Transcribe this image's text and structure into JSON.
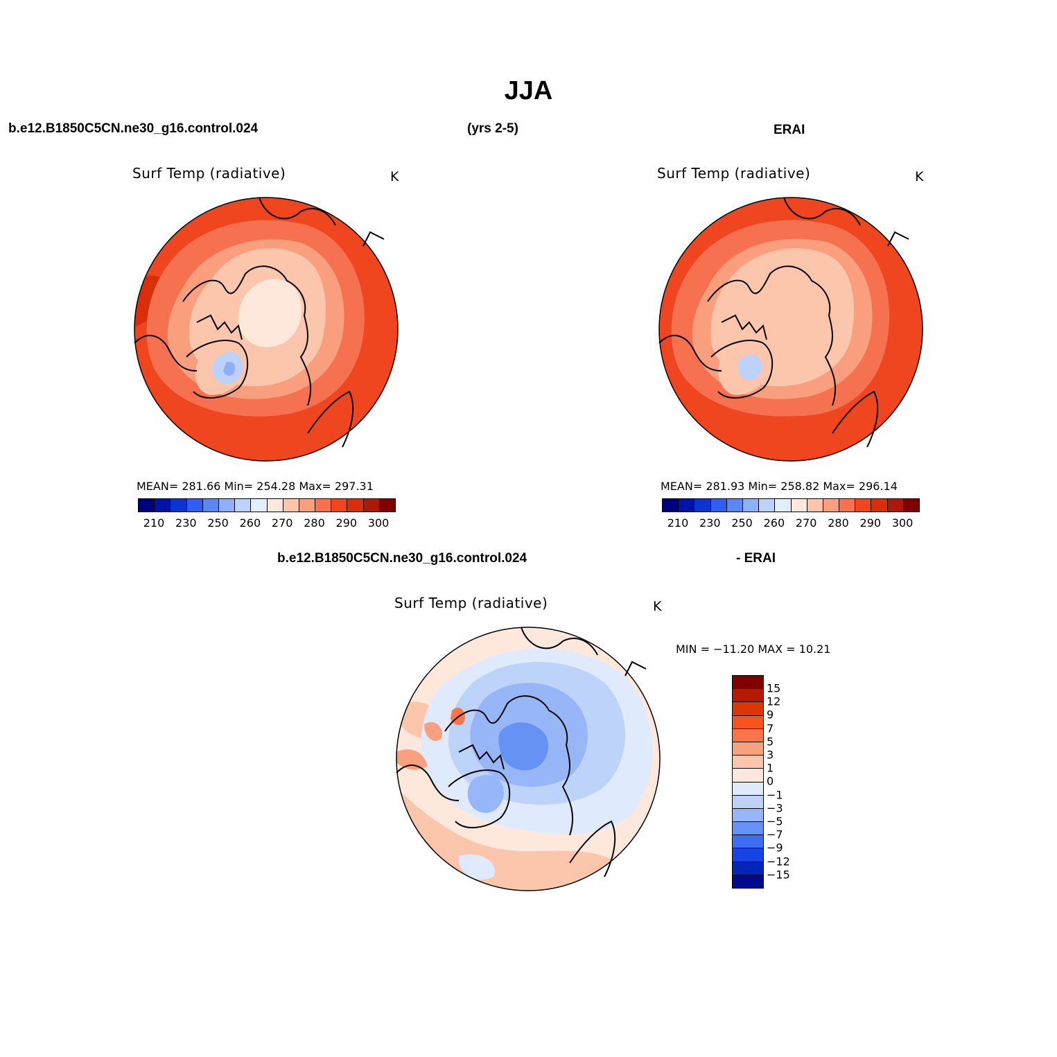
{
  "page": {
    "title": "JJA",
    "left_case": "b.e12.B1850C5CN.ne30_g16.control.024",
    "years": "(yrs 2-5)",
    "right_case": "ERAI",
    "diff_case": "b.e12.B1850C5CN.ne30_g16.control.024",
    "diff_minus": "- ERAI"
  },
  "panels": {
    "model": {
      "title": "Surf Temp (radiative)",
      "unit": "K",
      "stats": "MEAN= 281.66   Min= 254.28   Max= 297.31"
    },
    "obs": {
      "title": "Surf Temp (radiative)",
      "unit": "K",
      "stats": "MEAN= 281.93   Min= 258.82   Max= 296.14"
    },
    "diff": {
      "title": "Surf Temp (radiative)",
      "unit": "K",
      "stats": "MIN = −11.20  MAX =   10.21"
    }
  },
  "abs_colorbar": {
    "colors": [
      "#00007f",
      "#0013a8",
      "#0a35d0",
      "#2f5ef0",
      "#5b86f5",
      "#8fb0f7",
      "#bcd2fa",
      "#e2edfd",
      "#fde8db",
      "#fcc6ad",
      "#fa9f7e",
      "#f67150",
      "#f0461f",
      "#d82f0a",
      "#ad1908",
      "#800000"
    ],
    "ticks": [
      "210",
      "230",
      "250",
      "260",
      "270",
      "280",
      "290",
      "300"
    ]
  },
  "diff_colorbar": {
    "colors": [
      "#800000",
      "#b31a00",
      "#dc3508",
      "#f5541e",
      "#f8764a",
      "#f9a17e",
      "#fcc6ad",
      "#fde8db",
      "#dfeafd",
      "#bdd3fa",
      "#97b6f8",
      "#6691f5",
      "#3d6ef4",
      "#1546e5",
      "#0524b8",
      "#000a8c"
    ],
    "ticks": [
      "15",
      "12",
      "9",
      "7",
      "5",
      "3",
      "1",
      "0",
      "−1",
      "−3",
      "−5",
      "−7",
      "−9",
      "−12",
      "−15"
    ]
  },
  "map_colors": {
    "orange": "#f0461f",
    "deep_orange": "#d82f0a",
    "light_orange": "#f67150",
    "peach": "#fa9f7e",
    "pale": "#fcc6ad",
    "cream": "#fde8db",
    "pale_blue": "#bcd2fa",
    "blue": "#8fb0f7",
    "diff_blue_light": "#dfeafd",
    "diff_blue": "#bdd3fa",
    "diff_blue_mid": "#97b6f8",
    "diff_blue_dark": "#6691f5"
  }
}
